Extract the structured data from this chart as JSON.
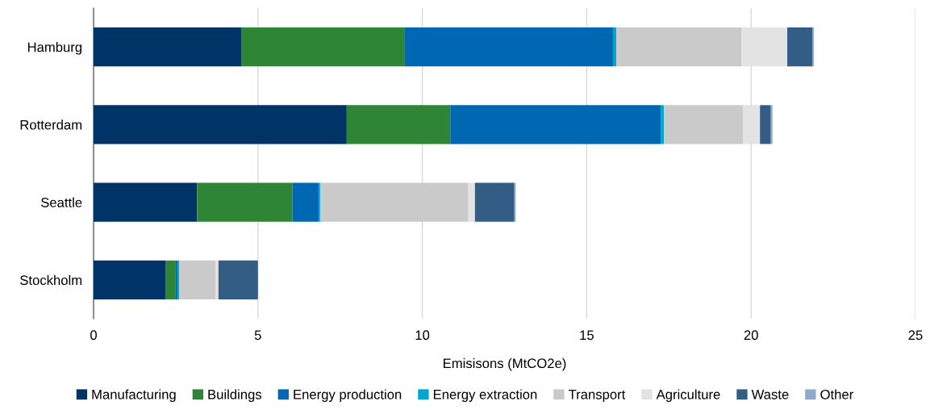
{
  "chart_data": {
    "type": "bar",
    "orientation": "horizontal",
    "stacked": true,
    "categories": [
      "Hamburg",
      "Rotterdam",
      "Seattle",
      "Stockholm"
    ],
    "series": [
      {
        "name": "Manufacturing",
        "color": "#003366",
        "values": [
          4.49,
          7.7,
          3.15,
          2.2
        ]
      },
      {
        "name": "Buildings",
        "color": "#2e8536",
        "values": [
          4.96,
          3.15,
          2.9,
          0.3
        ]
      },
      {
        "name": "Energy production",
        "color": "#0068b3",
        "values": [
          6.35,
          6.4,
          0.8,
          0.05
        ]
      },
      {
        "name": "Energy extraction",
        "color": "#00a6d1",
        "values": [
          0.1,
          0.1,
          0.05,
          0.05
        ]
      },
      {
        "name": "Transport",
        "color": "#cacaca",
        "values": [
          3.8,
          2.4,
          4.5,
          1.12
        ]
      },
      {
        "name": "Agriculture",
        "color": "#e3e3e3",
        "values": [
          1.4,
          0.52,
          0.2,
          0.08
        ]
      },
      {
        "name": "Waste",
        "color": "#335d85",
        "values": [
          0.76,
          0.33,
          1.2,
          1.2
        ]
      },
      {
        "name": "Other",
        "color": "#8fa9c9",
        "values": [
          0.05,
          0.05,
          0.04,
          0
        ]
      }
    ],
    "xlabel": "Emisisons (MtCO2e)",
    "xlim": [
      0,
      25
    ],
    "xticks": [
      0,
      5,
      10,
      15,
      20,
      25
    ],
    "grid": "x",
    "legend": "bottom"
  }
}
